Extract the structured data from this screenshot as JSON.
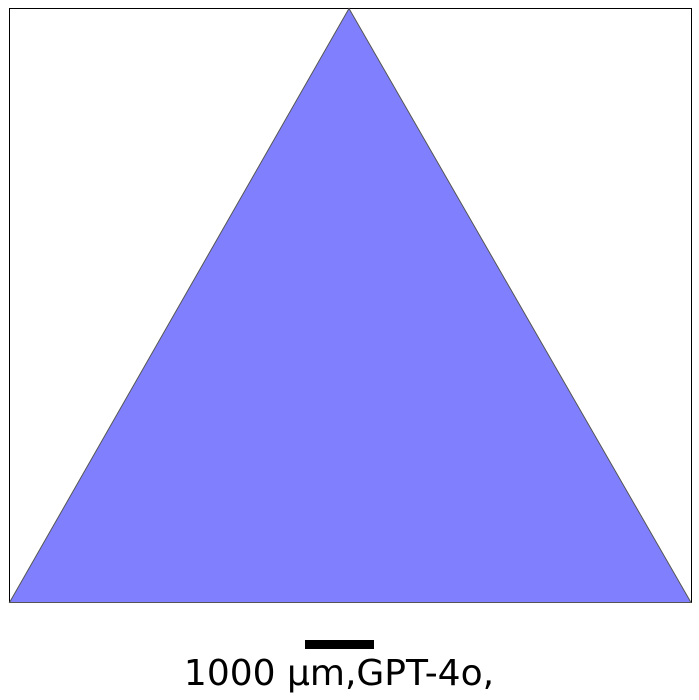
{
  "caption": "1000 µm,GPT-4o,"
}
